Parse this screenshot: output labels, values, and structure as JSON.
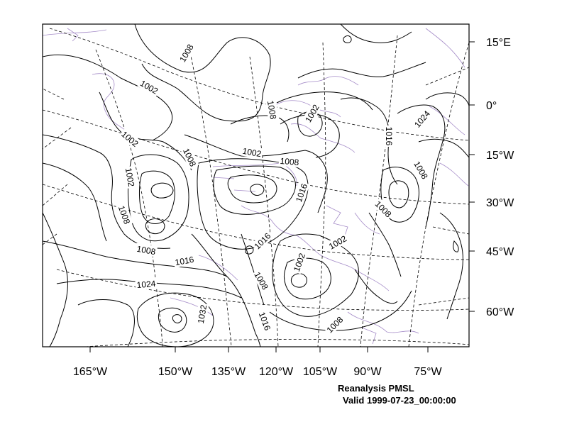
{
  "caption": {
    "title": "Reanalysis PMSL",
    "valid": "Valid 1999-07-23_00:00:00"
  },
  "axes": {
    "bottom_labels": [
      "165°W",
      "150°W",
      "135°W",
      "120°W",
      "105°W",
      "90°W",
      "75°W"
    ],
    "right_labels": [
      "15°E",
      "0°",
      "15°W",
      "30°W",
      "45°W",
      "60°W"
    ]
  },
  "contour_labels": [
    "1008",
    "1002",
    "1008",
    "1002",
    "1008",
    "1002",
    "1008",
    "1002",
    "1008",
    "1016",
    "1024",
    "1016",
    "1008",
    "1008",
    "1002",
    "1016",
    "1002",
    "1008",
    "1016",
    "1024",
    "1032",
    "1008",
    "1016",
    "1008",
    "1002"
  ],
  "colors": {
    "contour": "#000000",
    "coastline": "#a58cc8"
  }
}
